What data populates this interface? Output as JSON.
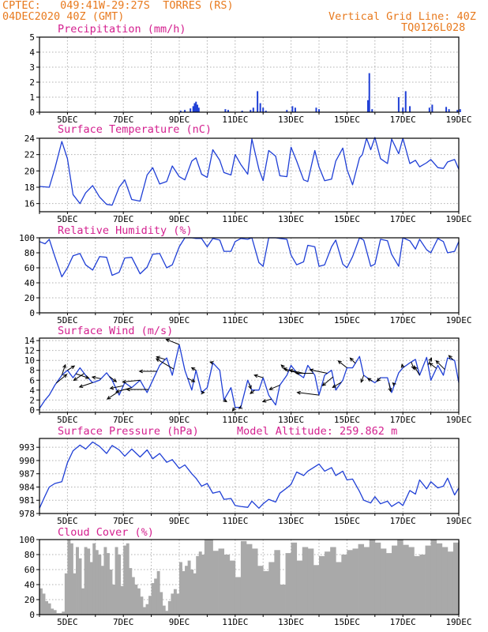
{
  "header": {
    "line1": "CPTEC:   049:41W-29:27S  TORRES (RS)",
    "line2": "04DEC2020 40Z (GMT)",
    "right1": "Vertical Grid Line: 40Z",
    "right2": "TQ0126L028",
    "color": "#e87a1e"
  },
  "colors": {
    "title": "#d4208f",
    "series": "#1f3fd6",
    "bars": "#1f3fd6",
    "cloud": "#a9a9a9",
    "grid": "#b0b0b0"
  },
  "x_axis": {
    "labels": [
      "5DEC",
      "7DEC",
      "9DEC",
      "11DEC",
      "13DEC",
      "15DEC",
      "17DEC",
      "19DEC"
    ]
  },
  "chart_data": [
    {
      "type": "bar",
      "title": "Precipitation (mm/h)",
      "ylim": [
        0,
        5
      ],
      "yticks": [
        0,
        1,
        2,
        3,
        4,
        5
      ],
      "bars": [
        [
          9.05,
          0.1
        ],
        [
          9.2,
          0.15
        ],
        [
          9.4,
          0.25
        ],
        [
          9.5,
          0.4
        ],
        [
          9.55,
          0.6
        ],
        [
          9.6,
          0.7
        ],
        [
          9.65,
          0.5
        ],
        [
          9.7,
          0.3
        ],
        [
          10.65,
          0.2
        ],
        [
          10.75,
          0.15
        ],
        [
          11.25,
          0.1
        ],
        [
          11.55,
          0.15
        ],
        [
          11.65,
          0.3
        ],
        [
          11.8,
          1.4
        ],
        [
          11.9,
          0.6
        ],
        [
          12.0,
          0.3
        ],
        [
          12.1,
          0.1
        ],
        [
          12.85,
          0.15
        ],
        [
          13.05,
          0.4
        ],
        [
          13.15,
          0.3
        ],
        [
          13.9,
          0.3
        ],
        [
          14.0,
          0.2
        ],
        [
          15.75,
          0.8
        ],
        [
          15.8,
          2.6
        ],
        [
          15.9,
          0.2
        ],
        [
          16.85,
          1.0
        ],
        [
          17.0,
          0.3
        ],
        [
          17.1,
          1.4
        ],
        [
          17.25,
          0.4
        ],
        [
          17.95,
          0.3
        ],
        [
          18.05,
          0.5
        ],
        [
          18.55,
          0.35
        ],
        [
          18.65,
          0.2
        ],
        [
          18.95,
          0.15
        ],
        [
          19.05,
          0.2
        ]
      ]
    },
    {
      "type": "line",
      "title": "Surface Temperature (nC)",
      "ylim": [
        15,
        24
      ],
      "yticks": [
        16,
        18,
        20,
        22,
        24
      ],
      "x": [
        4.0,
        4.35,
        4.55,
        4.8,
        5.0,
        5.2,
        5.45,
        5.65,
        5.9,
        6.15,
        6.4,
        6.6,
        6.85,
        7.05,
        7.3,
        7.6,
        7.85,
        8.05,
        8.3,
        8.55,
        8.75,
        9.0,
        9.2,
        9.45,
        9.6,
        9.8,
        10.0,
        10.2,
        10.45,
        10.6,
        10.85,
        11.0,
        11.2,
        11.45,
        11.6,
        11.85,
        12.0,
        12.2,
        12.45,
        12.6,
        12.85,
        13.0,
        13.2,
        13.45,
        13.6,
        13.85,
        14.0,
        14.2,
        14.45,
        14.6,
        14.85,
        15.0,
        15.2,
        15.45,
        15.55,
        15.7,
        15.85,
        16.0,
        16.2,
        16.45,
        16.6,
        16.85,
        17.0,
        17.25,
        17.45,
        17.6,
        17.85,
        18.0,
        18.25,
        18.45,
        18.6,
        18.85,
        19.0
      ],
      "y": [
        18.1,
        18.0,
        20.3,
        23.6,
        21.5,
        17.1,
        16.0,
        17.3,
        18.2,
        16.8,
        15.9,
        15.8,
        18.0,
        18.9,
        16.5,
        16.3,
        19.5,
        20.4,
        18.4,
        18.7,
        20.6,
        19.3,
        18.9,
        21.2,
        21.6,
        19.6,
        19.2,
        22.6,
        21.3,
        19.8,
        19.5,
        22.0,
        20.8,
        19.6,
        23.9,
        20.2,
        18.8,
        22.5,
        21.8,
        19.4,
        19.3,
        22.9,
        21.2,
        18.9,
        18.7,
        22.5,
        20.5,
        18.8,
        19.0,
        21.2,
        22.8,
        20.2,
        18.3,
        21.6,
        22.0,
        24.0,
        22.6,
        24.1,
        21.5,
        20.9,
        23.9,
        22.1,
        24.0,
        20.9,
        21.3,
        20.5,
        21.0,
        21.4,
        20.4,
        20.3,
        21.1,
        21.4,
        20.2
      ]
    },
    {
      "type": "line",
      "title": "Relative Humidity (%)",
      "ylim": [
        0,
        100
      ],
      "yticks": [
        0,
        20,
        40,
        60,
        80,
        100
      ],
      "x": [
        4.0,
        4.2,
        4.35,
        4.55,
        4.8,
        5.0,
        5.2,
        5.45,
        5.65,
        5.9,
        6.15,
        6.4,
        6.6,
        6.85,
        7.05,
        7.3,
        7.6,
        7.85,
        8.05,
        8.3,
        8.55,
        8.75,
        9.0,
        9.2,
        9.45,
        9.6,
        9.8,
        10.0,
        10.2,
        10.45,
        10.6,
        10.85,
        11.0,
        11.2,
        11.45,
        11.6,
        11.85,
        12.0,
        12.2,
        12.45,
        12.6,
        12.85,
        13.0,
        13.2,
        13.45,
        13.6,
        13.85,
        14.0,
        14.2,
        14.45,
        14.6,
        14.85,
        15.0,
        15.2,
        15.45,
        15.6,
        15.85,
        16.0,
        16.2,
        16.45,
        16.6,
        16.85,
        17.0,
        17.25,
        17.45,
        17.6,
        17.85,
        18.0,
        18.25,
        18.45,
        18.6,
        18.85,
        19.0
      ],
      "y": [
        95,
        92,
        98,
        75,
        48,
        60,
        76,
        79,
        64,
        57,
        75,
        74,
        50,
        54,
        73,
        74,
        52,
        61,
        78,
        79,
        60,
        64,
        88,
        100,
        100,
        99,
        99,
        88,
        99,
        97,
        82,
        82,
        95,
        99,
        98,
        100,
        67,
        62,
        100,
        100,
        99,
        98,
        77,
        64,
        68,
        90,
        88,
        62,
        64,
        88,
        97,
        65,
        60,
        75,
        100,
        97,
        62,
        65,
        98,
        96,
        78,
        62,
        100,
        96,
        85,
        98,
        84,
        80,
        99,
        95,
        80,
        82,
        95
      ]
    },
    {
      "type": "line",
      "title": "Surface Wind (m/s)",
      "ylim": [
        -0.5,
        14.5
      ],
      "yticks": [
        0,
        2,
        4,
        6,
        8,
        10,
        12,
        14
      ],
      "x": [
        4.0,
        4.2,
        4.35,
        4.55,
        4.8,
        5.0,
        5.2,
        5.45,
        5.65,
        5.9,
        6.15,
        6.4,
        6.6,
        6.85,
        7.05,
        7.3,
        7.6,
        7.85,
        8.05,
        8.3,
        8.55,
        8.75,
        9.0,
        9.2,
        9.45,
        9.6,
        9.8,
        10.0,
        10.2,
        10.45,
        10.6,
        10.85,
        11.0,
        11.2,
        11.45,
        11.6,
        11.85,
        12.0,
        12.2,
        12.45,
        12.6,
        12.85,
        13.0,
        13.2,
        13.45,
        13.6,
        13.85,
        14.0,
        14.2,
        14.45,
        14.6,
        14.85,
        15.0,
        15.2,
        15.45,
        15.6,
        15.85,
        16.0,
        16.2,
        16.45,
        16.6,
        16.85,
        17.0,
        17.25,
        17.45,
        17.6,
        17.85,
        18.0,
        18.25,
        18.45,
        18.6,
        18.85,
        19.0
      ],
      "y": [
        0.3,
        2.0,
        3.0,
        5.0,
        7.0,
        8.0,
        6.5,
        8.5,
        7.0,
        5.5,
        6.0,
        7.5,
        6.0,
        3.0,
        5.5,
        4.5,
        6.0,
        3.5,
        6.0,
        9.0,
        10.5,
        7.0,
        13.2,
        8.0,
        4.0,
        8.0,
        3.5,
        4.5,
        9.5,
        8.0,
        2.0,
        4.5,
        0.5,
        0.5,
        6.0,
        4.0,
        4.0,
        6.5,
        3.0,
        1.0,
        5.0,
        7.0,
        9.0,
        7.5,
        6.5,
        9.0,
        7.0,
        3.0,
        7.0,
        8.0,
        4.0,
        6.0,
        8.5,
        8.5,
        10.8,
        7.0,
        6.0,
        5.5,
        6.5,
        6.5,
        3.5,
        7.5,
        8.5,
        9.5,
        10.2,
        7.0,
        10.6,
        6.0,
        9.0,
        7.0,
        10.5,
        10.0,
        5.5
      ]
    },
    {
      "type": "line",
      "title": "Surface Pressure (hPa)",
      "annotation": "Model Altitude: 259.862 m",
      "ylim": [
        978,
        995
      ],
      "yticks": [
        978,
        981,
        984,
        987,
        990,
        993
      ],
      "x": [
        4.0,
        4.2,
        4.35,
        4.55,
        4.8,
        5.0,
        5.2,
        5.45,
        5.65,
        5.9,
        6.15,
        6.4,
        6.6,
        6.85,
        7.05,
        7.3,
        7.6,
        7.85,
        8.05,
        8.3,
        8.55,
        8.75,
        9.0,
        9.2,
        9.45,
        9.6,
        9.8,
        10.0,
        10.2,
        10.45,
        10.6,
        10.85,
        11.0,
        11.2,
        11.45,
        11.6,
        11.85,
        12.0,
        12.2,
        12.45,
        12.6,
        12.85,
        13.0,
        13.2,
        13.45,
        13.6,
        13.85,
        14.0,
        14.2,
        14.45,
        14.6,
        14.85,
        15.0,
        15.2,
        15.45,
        15.6,
        15.85,
        16.0,
        16.2,
        16.45,
        16.6,
        16.85,
        17.0,
        17.25,
        17.45,
        17.6,
        17.85,
        18.0,
        18.25,
        18.45,
        18.6,
        18.85,
        19.0
      ],
      "y": [
        979.2,
        982.0,
        984.0,
        984.8,
        985.2,
        989.5,
        992.2,
        993.5,
        992.6,
        994.2,
        993.2,
        991.6,
        993.4,
        992.4,
        991.0,
        992.6,
        990.8,
        992.4,
        990.4,
        991.6,
        989.6,
        990.2,
        988.2,
        989.0,
        987.0,
        986.0,
        984.2,
        984.8,
        982.6,
        983.0,
        981.2,
        981.4,
        979.8,
        979.6,
        979.4,
        980.8,
        979.2,
        980.2,
        981.2,
        980.6,
        982.6,
        983.8,
        984.6,
        987.4,
        986.6,
        987.6,
        988.6,
        989.2,
        987.6,
        988.4,
        986.6,
        987.6,
        985.6,
        985.8,
        983.0,
        981.0,
        980.4,
        981.8,
        980.2,
        980.8,
        979.6,
        980.6,
        979.8,
        983.2,
        982.4,
        985.6,
        983.6,
        985.2,
        983.8,
        984.2,
        986.0,
        982.2,
        983.8
      ]
    },
    {
      "type": "bar",
      "title": "Cloud Cover (%)",
      "ylim": [
        0,
        100
      ],
      "yticks": [
        0,
        20,
        40,
        60,
        80,
        100
      ],
      "cloud_x": [
        4.0,
        4.1,
        4.2,
        4.3,
        4.4,
        4.5,
        4.6,
        4.7,
        4.8,
        4.9,
        5.0,
        5.1,
        5.2,
        5.3,
        5.4,
        5.5,
        5.6,
        5.7,
        5.8,
        5.9,
        6.0,
        6.1,
        6.2,
        6.3,
        6.4,
        6.5,
        6.6,
        6.7,
        6.8,
        6.9,
        7.0,
        7.1,
        7.2,
        7.3,
        7.4,
        7.5,
        7.6,
        7.7,
        7.8,
        7.9,
        8.0,
        8.1,
        8.2,
        8.3,
        8.4,
        8.5,
        8.6,
        8.7,
        8.8,
        8.9,
        9.0,
        9.1,
        9.2,
        9.3,
        9.4,
        9.5,
        9.6,
        9.7,
        9.8,
        9.9,
        10.0,
        10.2,
        10.4,
        10.6,
        10.8,
        11.0,
        11.2,
        11.4,
        11.6,
        11.8,
        12.0,
        12.2,
        12.4,
        12.6,
        12.8,
        13.0,
        13.2,
        13.4,
        13.6,
        13.8,
        14.0,
        14.2,
        14.4,
        14.6,
        14.8,
        15.0,
        15.2,
        15.4,
        15.6,
        15.8,
        16.0,
        16.2,
        16.4,
        16.6,
        16.8,
        17.0,
        17.2,
        17.4,
        17.6,
        17.8,
        18.0,
        18.2,
        18.4,
        18.6,
        18.8,
        19.0
      ],
      "cloud_y": [
        35,
        28,
        18,
        15,
        8,
        6,
        2,
        2,
        4,
        55,
        100,
        95,
        55,
        90,
        75,
        35,
        90,
        88,
        70,
        95,
        86,
        80,
        65,
        90,
        82,
        60,
        40,
        90,
        80,
        38,
        92,
        95,
        62,
        50,
        40,
        35,
        24,
        10,
        14,
        25,
        42,
        48,
        58,
        30,
        12,
        5,
        18,
        28,
        34,
        28,
        70,
        58,
        65,
        72,
        60,
        55,
        78,
        84,
        80,
        100,
        100,
        85,
        88,
        80,
        72,
        50,
        98,
        94,
        88,
        65,
        58,
        70,
        86,
        40,
        82,
        96,
        72,
        90,
        88,
        66,
        78,
        84,
        90,
        70,
        80,
        86,
        88,
        94,
        90,
        100,
        96,
        88,
        82,
        92,
        100,
        93,
        90,
        78,
        80,
        92,
        100,
        95,
        90,
        84,
        96,
        98
      ]
    }
  ],
  "wind_barbs": {
    "x": [
      4.6,
      4.8,
      5.0,
      5.3,
      5.6,
      5.9,
      6.2,
      6.5,
      6.8,
      7.0,
      7.3,
      7.6,
      7.9,
      8.2,
      8.5,
      8.8,
      9.0,
      9.3,
      9.6,
      9.8,
      10.2,
      10.6,
      11.0,
      11.2,
      11.5,
      11.7,
      12.0,
      12.3,
      12.6,
      12.9,
      13.2,
      13.5,
      13.8,
      14.0,
      14.3,
      14.5,
      14.8,
      15.0,
      15.3,
      15.6,
      15.9,
      16.2,
      16.5,
      16.7,
      17.0,
      17.3,
      17.6,
      17.9,
      18.2,
      18.5,
      18.8
    ],
    "u": [
      1.2,
      0.4,
      0.8,
      1.5,
      -1.2,
      -1.5,
      -1.0,
      0.8,
      -1.2,
      -1.5,
      -1.8,
      -2.0,
      -2.5,
      -2.0,
      -1.0,
      -2.0,
      -1.5,
      0.8,
      -0.5,
      0.3,
      -0.3,
      0.3,
      -0.3,
      -0.2,
      0.2,
      -0.5,
      -1.0,
      -1.0,
      -1.2,
      -0.8,
      -1.5,
      -1.8,
      -2.0,
      -2.5,
      -2.0,
      -1.2,
      -1.0,
      -1.0,
      -0.6,
      -0.3,
      -0.5,
      -0.4,
      0.2,
      -0.2,
      -0.1,
      0.3,
      -0.6,
      0.4,
      -0.8,
      -1.0,
      -0.5
    ],
    "v": [
      1.0,
      1.2,
      0.5,
      -0.5,
      -0.8,
      -0.5,
      0.2,
      -0.6,
      -0.8,
      -0.3,
      -0.5,
      -0.2,
      0.0,
      0.0,
      0.3,
      1.2,
      0.6,
      -0.4,
      0.3,
      0.0,
      0.1,
      -0.2,
      -0.4,
      -0.1,
      -0.6,
      -0.4,
      0.3,
      -0.3,
      -0.5,
      0.8,
      0.5,
      0.4,
      0.0,
      0.3,
      0.4,
      -1.0,
      -0.6,
      0.8,
      0.6,
      -0.8,
      0.3,
      -0.4,
      -1.0,
      0.2,
      0.4,
      -0.8,
      1.0,
      0.8,
      0.6,
      1.0,
      0.5
    ]
  }
}
